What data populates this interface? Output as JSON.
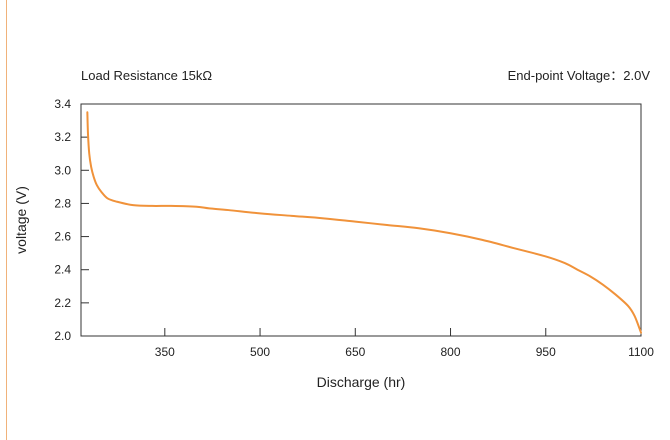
{
  "chart_data": {
    "type": "line",
    "annotations": {
      "left": "Load Resistance 15kΩ",
      "right": "End-point Voltage：2.0V"
    },
    "xlabel": "Discharge (hr)",
    "ylabel": "voltage (V)",
    "xlim": [
      218,
      1100
    ],
    "ylim": [
      2.0,
      3.4
    ],
    "x_ticks": [
      350,
      500,
      650,
      800,
      950,
      1100
    ],
    "y_ticks": [
      2.0,
      2.2,
      2.4,
      2.6,
      2.8,
      3.0,
      3.2,
      3.4
    ],
    "grid": false,
    "line_color": "#f0923a",
    "series": [
      {
        "x": [
          228,
          229,
          231,
          234,
          238,
          243,
          250,
          260,
          275,
          300,
          330,
          360,
          400,
          420,
          450,
          500,
          550,
          600,
          650,
          700,
          750,
          800,
          850,
          900,
          950,
          980,
          1000,
          1020,
          1040,
          1060,
          1080,
          1090,
          1100
        ],
        "y": [
          3.35,
          3.22,
          3.1,
          3.02,
          2.96,
          2.91,
          2.87,
          2.83,
          2.81,
          2.79,
          2.785,
          2.785,
          2.78,
          2.77,
          2.76,
          2.74,
          2.725,
          2.71,
          2.69,
          2.67,
          2.65,
          2.62,
          2.58,
          2.53,
          2.48,
          2.44,
          2.4,
          2.36,
          2.31,
          2.25,
          2.18,
          2.12,
          2.02
        ]
      }
    ]
  }
}
